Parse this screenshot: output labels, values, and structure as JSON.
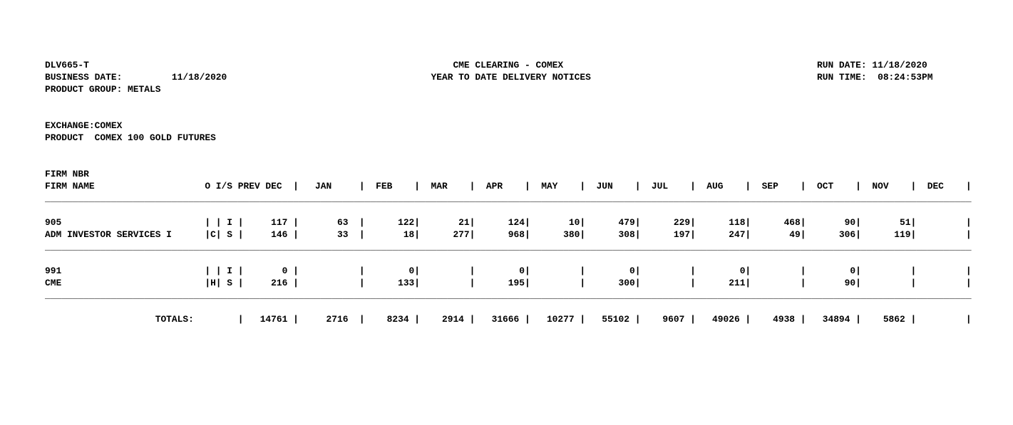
{
  "report": {
    "id": "DLV665-T",
    "business_date_label": "BUSINESS DATE:",
    "business_date": "11/18/2020",
    "product_group_label": "PRODUCT GROUP:",
    "product_group": "METALS",
    "title_line1": "CME CLEARING - COMEX",
    "title_line2": "YEAR TO DATE DELIVERY NOTICES",
    "run_date_label": "RUN DATE:",
    "run_date": "11/18/2020",
    "run_time_label": "RUN TIME:",
    "run_time": "08:24:53PM",
    "exchange_label": "EXCHANGE:",
    "exchange": "COMEX",
    "product_label": "PRODUCT",
    "product": "COMEX 100 GOLD FUTURES"
  },
  "table": {
    "header": {
      "firm_nbr": "FIRM NBR",
      "firm_name": "FIRM NAME",
      "o_is": "O I/S",
      "prev_col": "PREV DEC",
      "months": [
        "JAN",
        "FEB",
        "MAR",
        "APR",
        "MAY",
        "JUN",
        "JUL",
        "AUG",
        "SEP",
        "OCT",
        "NOV",
        "DEC"
      ]
    },
    "rows": [
      {
        "firm_nbr": "905",
        "firm_name": "ADM INVESTOR SERVICES I",
        "origin_flag": "C",
        "i_line": {
          "is": "I",
          "prev": "117",
          "values": [
            "63",
            "122",
            "21",
            "124",
            "10",
            "479",
            "229",
            "118",
            "468",
            "90",
            "51",
            ""
          ]
        },
        "s_line": {
          "is": "S",
          "prev": "146",
          "values": [
            "33",
            "18",
            "277",
            "968",
            "380",
            "308",
            "197",
            "247",
            "49",
            "306",
            "119",
            ""
          ]
        }
      },
      {
        "firm_nbr": "991",
        "firm_name": "CME",
        "origin_flag": "H",
        "i_line": {
          "is": "I",
          "prev": "0",
          "values": [
            "",
            "0",
            "",
            "0",
            "",
            "0",
            "",
            "0",
            "",
            "0",
            "",
            ""
          ]
        },
        "s_line": {
          "is": "S",
          "prev": "216",
          "values": [
            "",
            "133",
            "",
            "195",
            "",
            "300",
            "",
            "211",
            "",
            "90",
            "",
            ""
          ]
        }
      }
    ],
    "totals": {
      "label": "TOTALS:",
      "prev": "14761",
      "values": [
        "2716",
        "8234",
        "2914",
        "31666",
        "10277",
        "55102",
        "9607",
        "49026",
        "4938",
        "34894",
        "5862",
        ""
      ]
    }
  }
}
